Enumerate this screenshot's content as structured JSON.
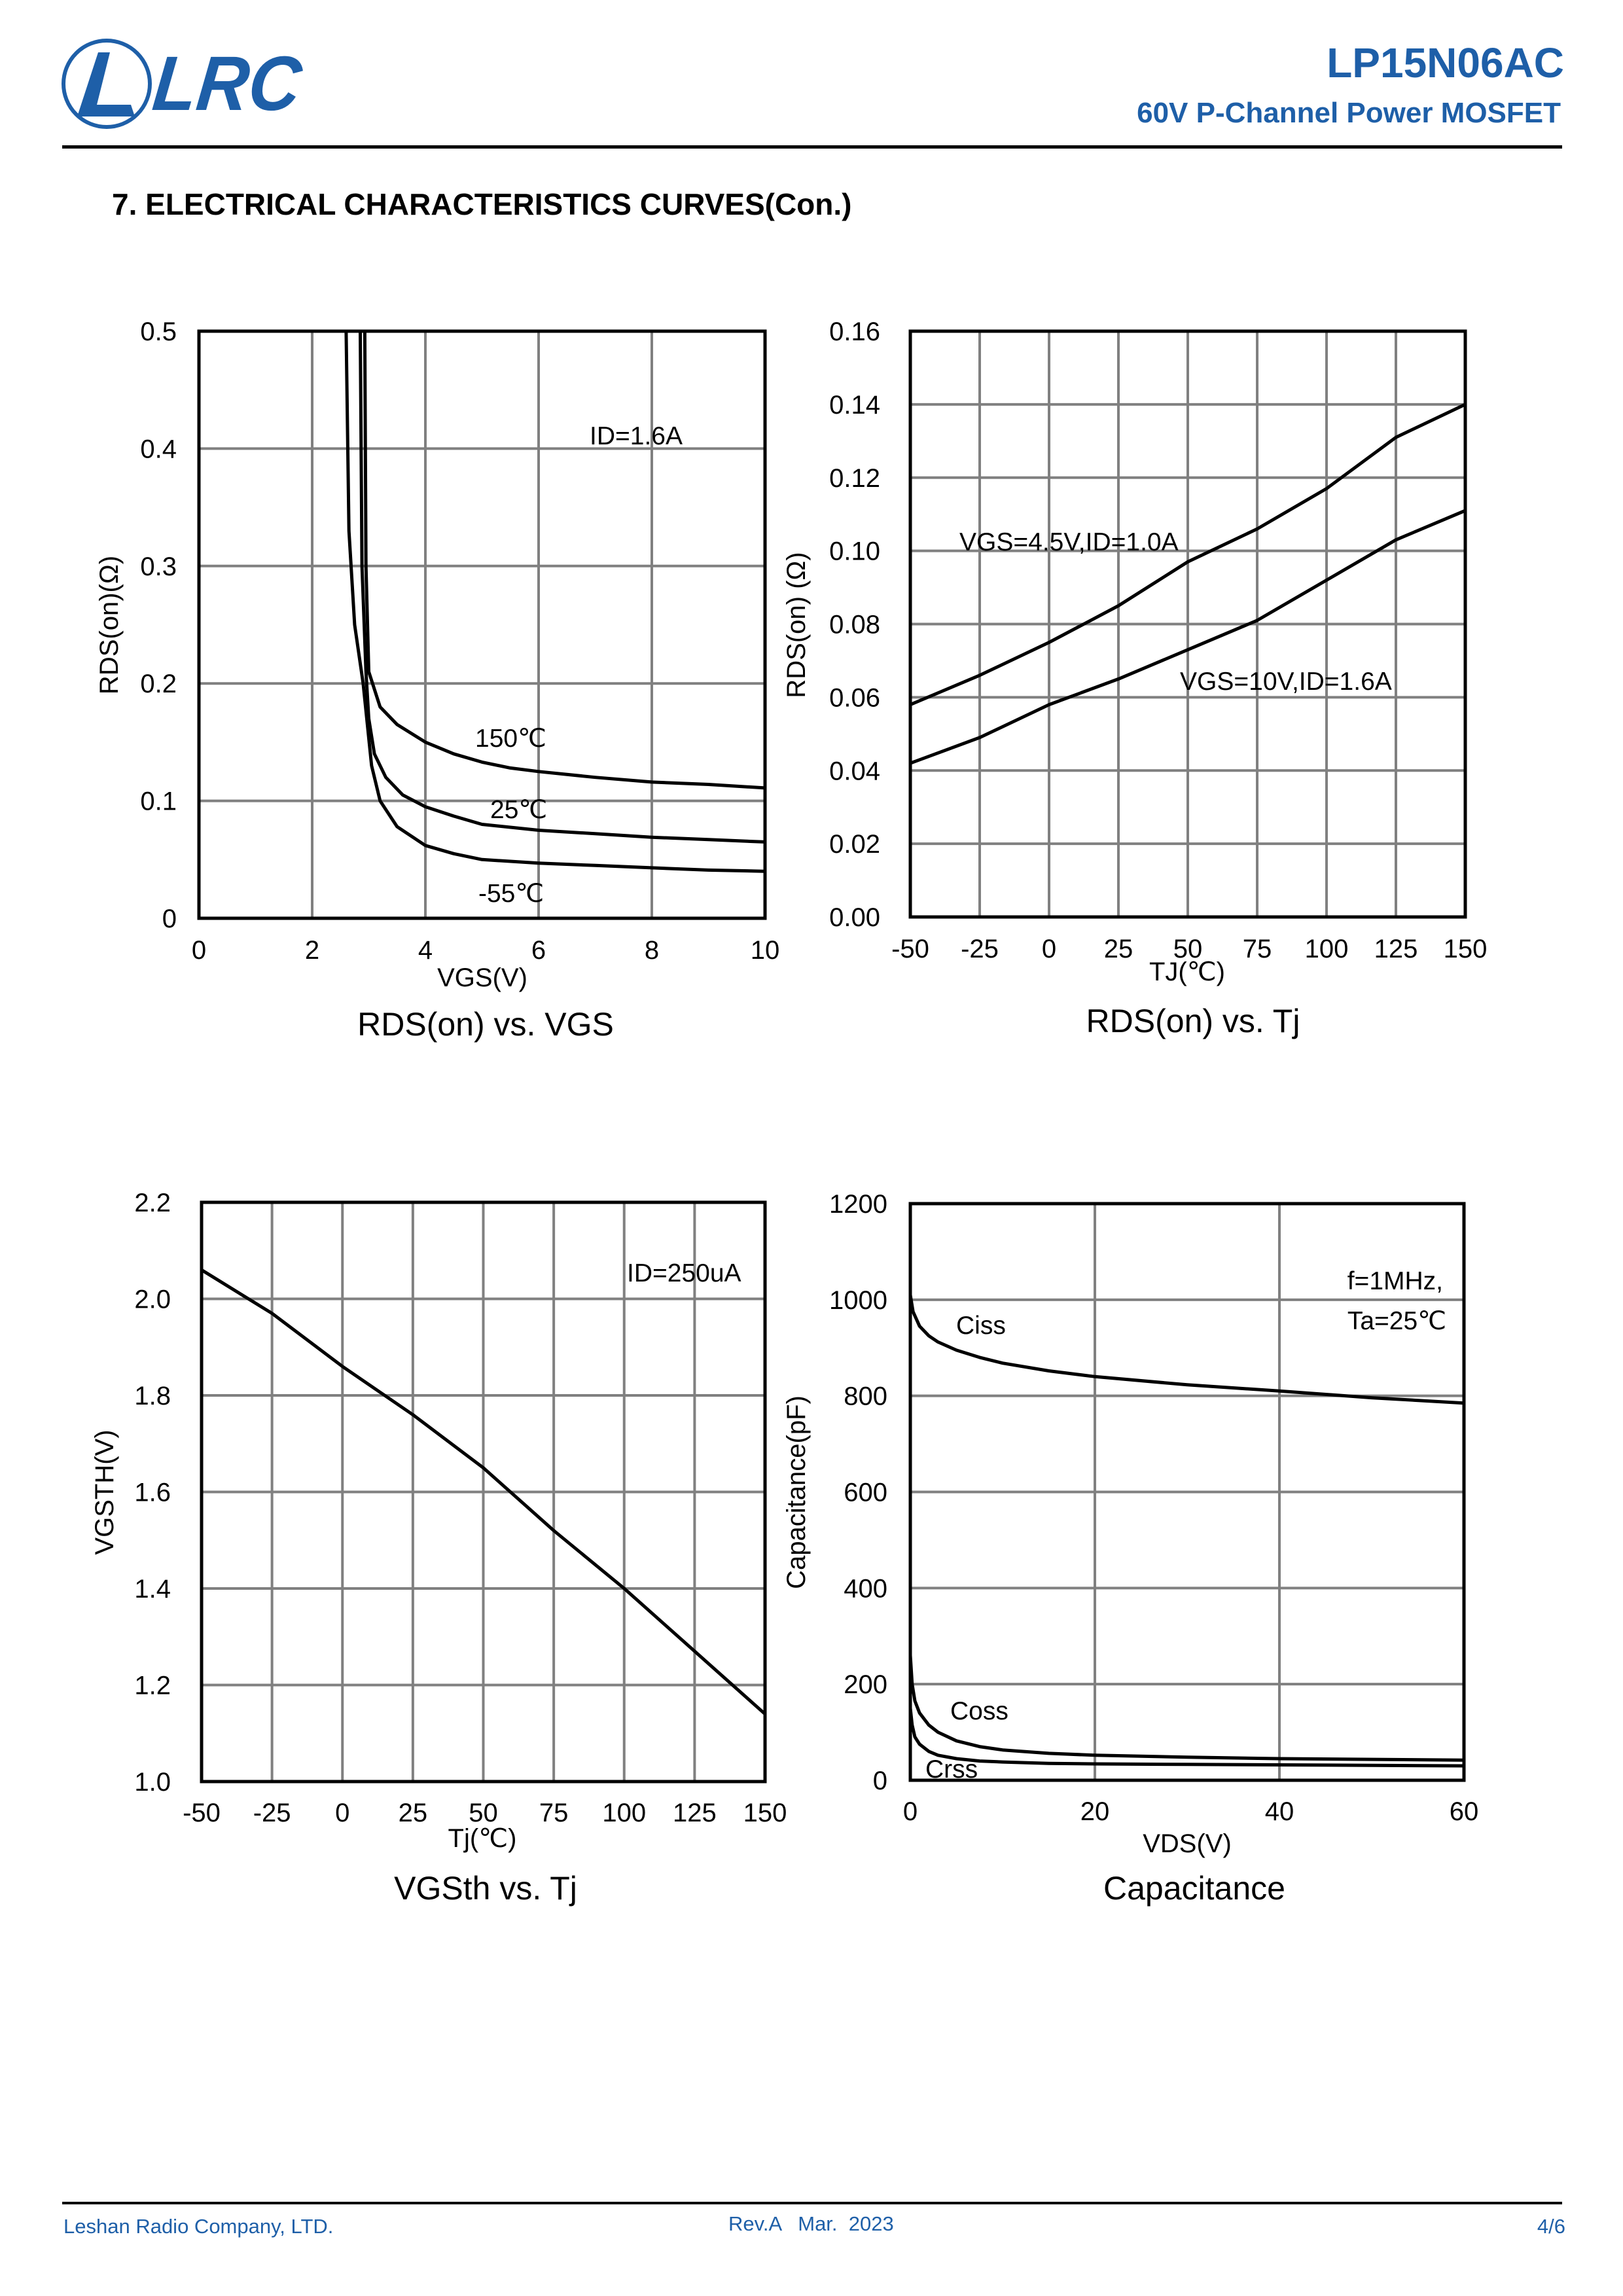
{
  "header": {
    "logo_text": "LRC",
    "part_number": "LP15N06AC",
    "subtitle": "60V P-Channel Power MOSFET"
  },
  "section_title": "7. ELECTRICAL CHARACTERISTICS CURVES(Con.)",
  "footer": {
    "company": "Leshan Radio Company, LTD.",
    "revision": "Rev.A   Mar.  2023",
    "page": "4/6"
  },
  "colors": {
    "brand": "#1E5FA8",
    "grid": "#808080",
    "line": "#000000"
  },
  "chart_data": [
    {
      "type": "line",
      "title": "RDS(on) vs. VGS",
      "xlabel": "VGS(V)",
      "ylabel": "RDS(on)(Ω)",
      "xlim": [
        0,
        10
      ],
      "ylim": [
        0,
        0.5
      ],
      "xticks": [
        0,
        2,
        4,
        6,
        8,
        10
      ],
      "yticks": [
        0,
        0.1,
        0.2,
        0.3,
        0.4,
        0.5
      ],
      "ytick_labels": [
        "0",
        "0.1",
        "0.2",
        "0.3",
        "0.4",
        "0.5"
      ],
      "grid": true,
      "annotations": [
        "ID=1.6A",
        "150℃",
        "25℃",
        "-55℃"
      ],
      "series": [
        {
          "name": "150℃",
          "x": [
            2.93,
            2.95,
            3.0,
            3.2,
            3.5,
            4.0,
            4.5,
            5.0,
            5.5,
            6.0,
            7.0,
            8.0,
            9.0,
            10.0
          ],
          "y": [
            0.5,
            0.3,
            0.21,
            0.18,
            0.165,
            0.15,
            0.14,
            0.133,
            0.128,
            0.125,
            0.12,
            0.116,
            0.114,
            0.111
          ]
        },
        {
          "name": "25℃",
          "x": [
            2.85,
            2.88,
            2.95,
            3.0,
            3.1,
            3.3,
            3.6,
            4.0,
            4.5,
            5.0,
            6.0,
            7.0,
            8.0,
            9.0,
            10.0
          ],
          "y": [
            0.5,
            0.3,
            0.21,
            0.17,
            0.14,
            0.12,
            0.105,
            0.095,
            0.087,
            0.08,
            0.075,
            0.072,
            0.069,
            0.067,
            0.065
          ]
        },
        {
          "name": "-55℃",
          "x": [
            2.6,
            2.65,
            2.75,
            2.9,
            3.05,
            3.2,
            3.5,
            4.0,
            4.5,
            5.0,
            6.0,
            7.0,
            8.0,
            9.0,
            10.0
          ],
          "y": [
            0.5,
            0.33,
            0.25,
            0.2,
            0.13,
            0.1,
            0.078,
            0.062,
            0.055,
            0.05,
            0.047,
            0.045,
            0.043,
            0.041,
            0.04
          ]
        }
      ]
    },
    {
      "type": "line",
      "title": "RDS(on) vs. Tj",
      "xlabel": "TJ(℃)",
      "ylabel": "RDS(on) (Ω)",
      "xlim": [
        -50,
        150
      ],
      "ylim": [
        0,
        0.16
      ],
      "xticks": [
        -50,
        -25,
        0,
        25,
        50,
        75,
        100,
        125,
        150
      ],
      "yticks": [
        0,
        0.02,
        0.04,
        0.06,
        0.08,
        0.1,
        0.12,
        0.14,
        0.16
      ],
      "ytick_labels": [
        "0.00",
        "0.02",
        "0.04",
        "0.06",
        "0.08",
        "0.10",
        "0.12",
        "0.14",
        "0.16"
      ],
      "grid": true,
      "annotations": [
        "VGS=4.5V,ID=1.0A",
        "VGS=10V,ID=1.6A"
      ],
      "series": [
        {
          "name": "VGS=4.5V,ID=1.0A",
          "x": [
            -50,
            -25,
            0,
            25,
            50,
            75,
            100,
            125,
            150
          ],
          "y": [
            0.058,
            0.066,
            0.075,
            0.085,
            0.097,
            0.106,
            0.117,
            0.131,
            0.14
          ]
        },
        {
          "name": "VGS=10V,ID=1.6A",
          "x": [
            -50,
            -25,
            0,
            25,
            50,
            75,
            100,
            125,
            150
          ],
          "y": [
            0.042,
            0.049,
            0.058,
            0.065,
            0.073,
            0.081,
            0.092,
            0.103,
            0.111
          ]
        }
      ]
    },
    {
      "type": "line",
      "title": "VGSth vs. Tj",
      "xlabel": "Tj(℃)",
      "ylabel": "VGSTH(V)",
      "xlim": [
        -50,
        150
      ],
      "ylim": [
        1.0,
        2.2
      ],
      "xticks": [
        -50,
        -25,
        0,
        25,
        50,
        75,
        100,
        125,
        150
      ],
      "yticks": [
        1.0,
        1.2,
        1.4,
        1.6,
        1.8,
        2.0,
        2.2
      ],
      "ytick_labels": [
        "1.0",
        "1.2",
        "1.4",
        "1.6",
        "1.8",
        "2.0",
        "2.2"
      ],
      "grid": true,
      "annotations": [
        "ID=250uA"
      ],
      "series": [
        {
          "name": "VGSth",
          "x": [
            -50,
            -25,
            0,
            25,
            50,
            75,
            100,
            125,
            150
          ],
          "y": [
            2.06,
            1.97,
            1.86,
            1.76,
            1.65,
            1.52,
            1.4,
            1.27,
            1.14
          ]
        }
      ]
    },
    {
      "type": "line",
      "title": "Capacitance",
      "xlabel": "VDS(V)",
      "ylabel": "Capacitance(pF)",
      "xlim": [
        0,
        60
      ],
      "ylim": [
        0,
        1200
      ],
      "xticks": [
        0,
        20,
        40,
        60
      ],
      "yticks": [
        0,
        200,
        400,
        600,
        800,
        1000,
        1200
      ],
      "ytick_labels": [
        "0",
        "200",
        "400",
        "600",
        "800",
        "1000",
        "1200"
      ],
      "grid": true,
      "annotations": [
        "f=1MHz,",
        "Ta=25℃",
        "Ciss",
        "Coss",
        "Crss"
      ],
      "series": [
        {
          "name": "Ciss",
          "x": [
            0,
            0.3,
            1,
            2,
            3,
            5,
            7.5,
            10,
            15,
            20,
            30,
            40,
            50,
            60
          ],
          "y": [
            1010,
            975,
            945,
            925,
            912,
            895,
            880,
            868,
            852,
            840,
            823,
            810,
            796,
            785
          ]
        },
        {
          "name": "Coss",
          "x": [
            0,
            0.2,
            0.5,
            1,
            2,
            3,
            5,
            7.5,
            10,
            15,
            20,
            30,
            40,
            60
          ],
          "y": [
            260,
            200,
            165,
            140,
            115,
            100,
            82,
            70,
            63,
            56,
            52,
            48,
            45,
            42
          ]
        },
        {
          "name": "Crss",
          "x": [
            0,
            0.2,
            0.5,
            1,
            2,
            3,
            5,
            7.5,
            10,
            15,
            20,
            30,
            40,
            60
          ],
          "y": [
            150,
            115,
            90,
            75,
            60,
            52,
            45,
            40,
            38,
            35,
            34,
            33,
            32,
            30
          ]
        }
      ]
    }
  ]
}
